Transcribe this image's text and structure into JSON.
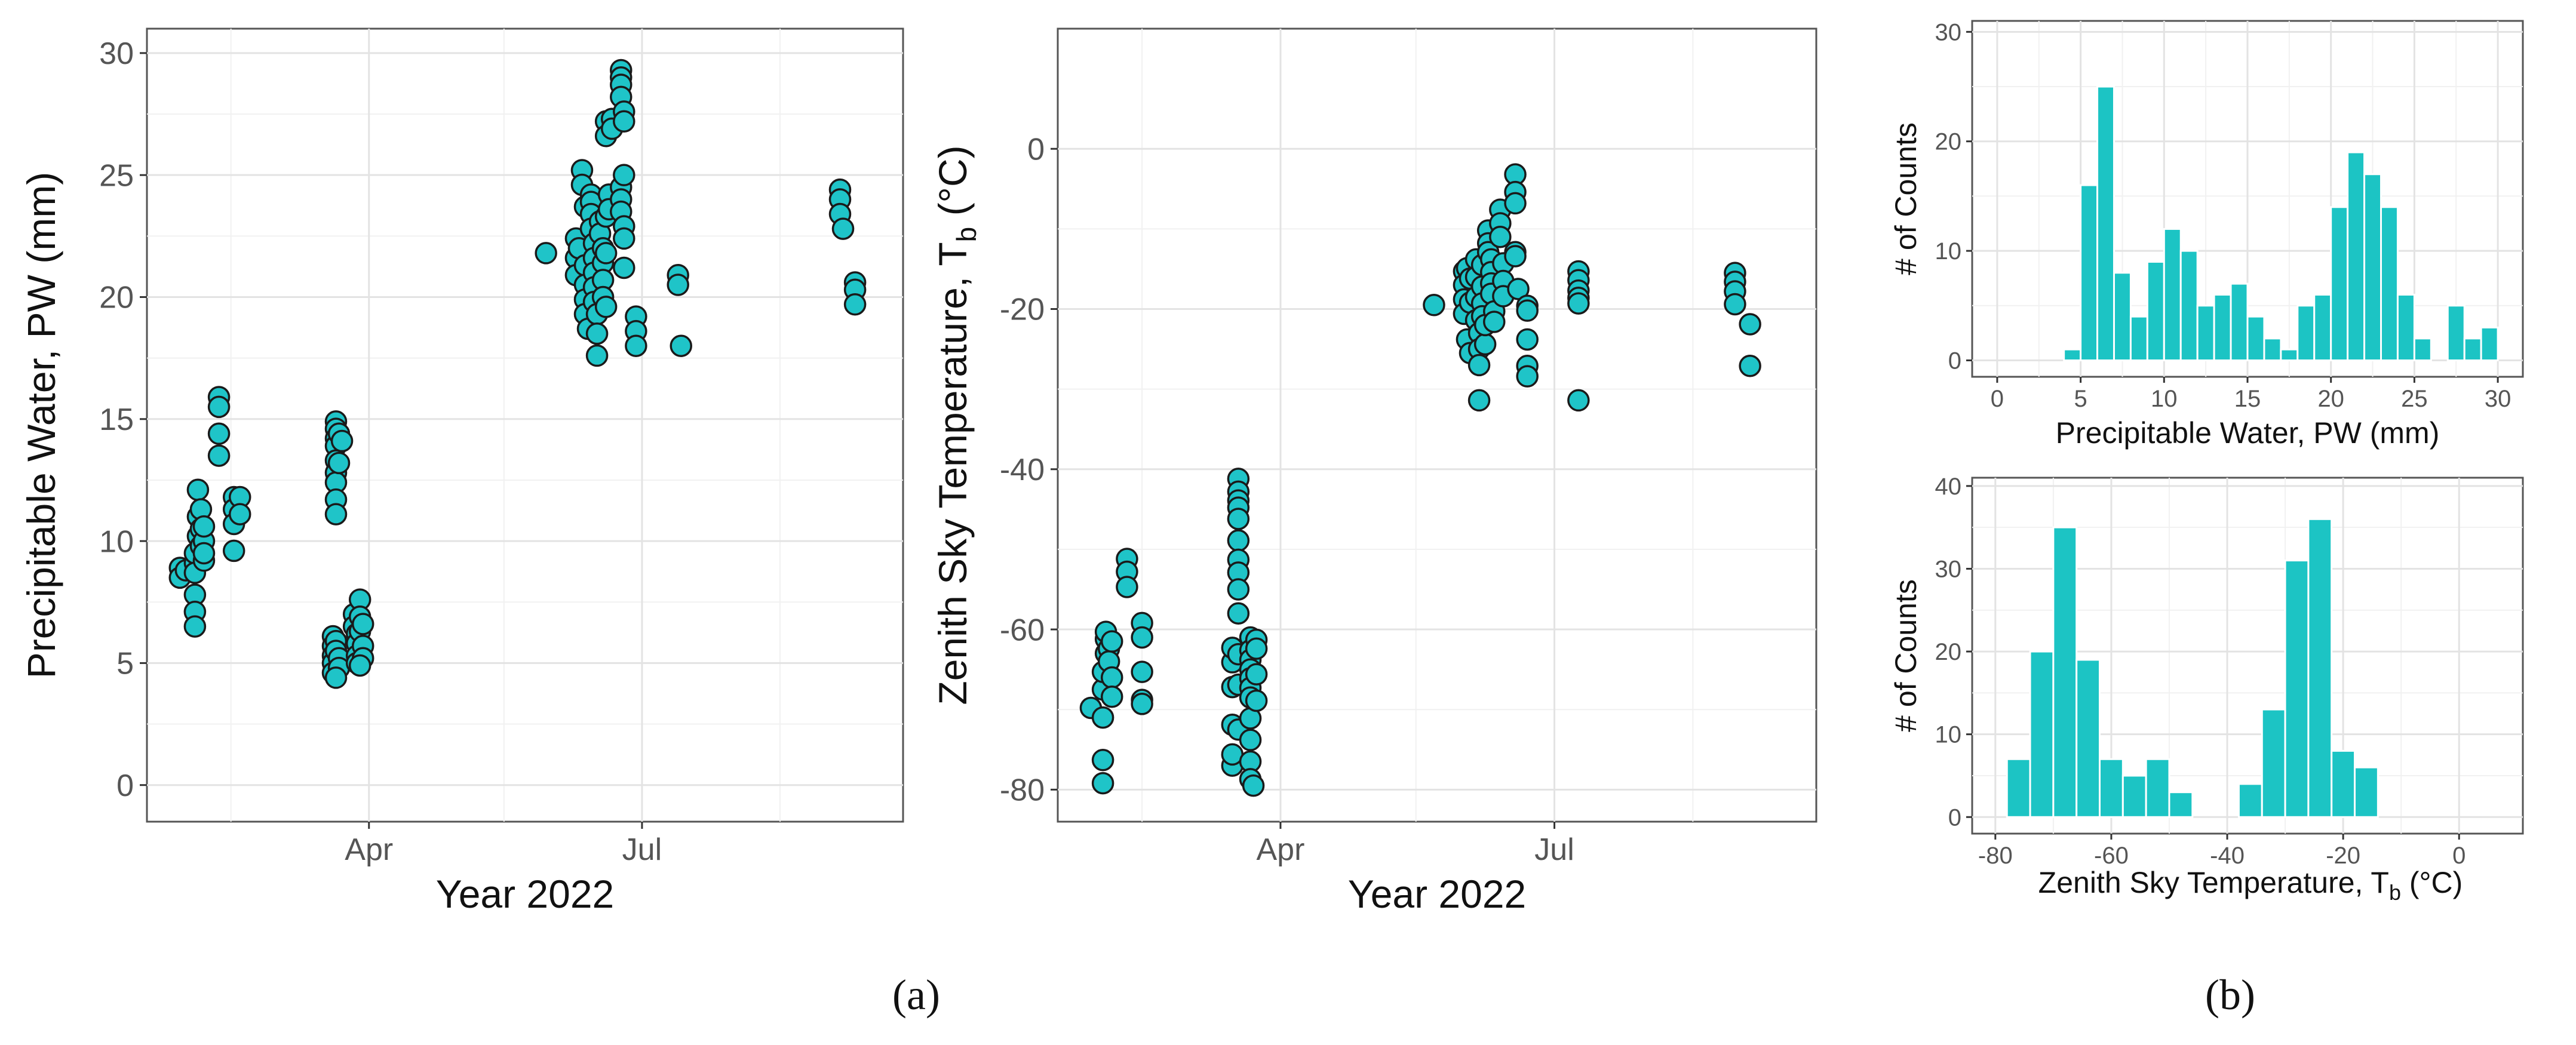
{
  "panel_labels": {
    "a": "(a)",
    "b": "(b)"
  },
  "chart_data": [
    {
      "id": "pw_ts",
      "type": "scatter",
      "title": "",
      "xlabel": "Year 2022",
      "ylabel": "Precipitable Water, PW  (mm)",
      "ylim": [
        -1.5,
        31
      ],
      "xlim_days": [
        17,
        269
      ],
      "xticks": [
        {
          "day": 91,
          "label": "Apr"
        },
        {
          "day": 182,
          "label": "Jul"
        }
      ],
      "yticks": [
        0,
        5,
        10,
        15,
        20,
        25,
        30
      ],
      "points": [
        [
          28,
          8.9
        ],
        [
          28,
          8.5
        ],
        [
          30,
          8.8
        ],
        [
          33,
          9.1
        ],
        [
          33,
          9.5
        ],
        [
          33,
          8.7
        ],
        [
          33,
          7.8
        ],
        [
          33,
          7.1
        ],
        [
          33,
          6.5
        ],
        [
          34,
          10.2
        ],
        [
          34,
          11.0
        ],
        [
          34,
          12.1
        ],
        [
          35,
          9.8
        ],
        [
          35,
          10.5
        ],
        [
          35,
          11.3
        ],
        [
          36,
          9.2
        ],
        [
          36,
          10.0
        ],
        [
          36,
          10.6
        ],
        [
          36,
          9.5
        ],
        [
          41,
          15.9
        ],
        [
          41,
          15.5
        ],
        [
          41,
          14.4
        ],
        [
          41,
          13.5
        ],
        [
          46,
          11.8
        ],
        [
          46,
          11.3
        ],
        [
          46,
          10.7
        ],
        [
          46,
          9.6
        ],
        [
          48,
          11.8
        ],
        [
          48,
          11.1
        ],
        [
          80,
          14.9
        ],
        [
          80,
          14.6
        ],
        [
          80,
          14.2
        ],
        [
          80,
          13.9
        ],
        [
          80,
          13.3
        ],
        [
          80,
          12.8
        ],
        [
          80,
          12.4
        ],
        [
          80,
          11.7
        ],
        [
          80,
          11.1
        ],
        [
          81,
          14.4
        ],
        [
          81,
          13.2
        ],
        [
          82,
          14.1
        ],
        [
          79,
          6.1
        ],
        [
          79,
          5.7
        ],
        [
          79,
          5.3
        ],
        [
          79,
          5.0
        ],
        [
          79,
          4.6
        ],
        [
          80,
          5.9
        ],
        [
          80,
          5.5
        ],
        [
          81,
          5.2
        ],
        [
          81,
          4.8
        ],
        [
          80,
          4.4
        ],
        [
          86,
          7.0
        ],
        [
          86,
          6.5
        ],
        [
          87,
          6.2
        ],
        [
          87,
          5.8
        ],
        [
          87,
          5.3
        ],
        [
          87,
          5.0
        ],
        [
          88,
          7.6
        ],
        [
          88,
          6.9
        ],
        [
          88,
          6.3
        ],
        [
          89,
          5.7
        ],
        [
          89,
          5.2
        ],
        [
          89,
          6.6
        ],
        [
          88,
          4.9
        ],
        [
          150,
          21.8
        ],
        [
          160,
          22.4
        ],
        [
          160,
          21.6
        ],
        [
          160,
          20.9
        ],
        [
          161,
          22.0
        ],
        [
          162,
          25.2
        ],
        [
          162,
          24.6
        ],
        [
          163,
          23.7
        ],
        [
          163,
          21.3
        ],
        [
          163,
          20.5
        ],
        [
          163,
          19.9
        ],
        [
          163,
          19.3
        ],
        [
          164,
          18.7
        ],
        [
          165,
          24.2
        ],
        [
          165,
          23.9
        ],
        [
          165,
          23.4
        ],
        [
          165,
          22.8
        ],
        [
          166,
          22.2
        ],
        [
          166,
          21.6
        ],
        [
          166,
          21.0
        ],
        [
          166,
          20.4
        ],
        [
          166,
          19.8
        ],
        [
          167,
          19.3
        ],
        [
          167,
          18.5
        ],
        [
          167,
          17.6
        ],
        [
          168,
          23.1
        ],
        [
          168,
          22.6
        ],
        [
          169,
          22.0
        ],
        [
          169,
          21.4
        ],
        [
          169,
          20.7
        ],
        [
          169,
          20.0
        ],
        [
          170,
          19.6
        ],
        [
          170,
          21.8
        ],
        [
          170,
          23.3
        ],
        [
          170,
          27.2
        ],
        [
          170,
          26.6
        ],
        [
          171,
          24.2
        ],
        [
          171,
          23.6
        ],
        [
          172,
          27.3
        ],
        [
          172,
          26.9
        ],
        [
          175,
          29.3
        ],
        [
          175,
          29.0
        ],
        [
          175,
          28.7
        ],
        [
          175,
          28.2
        ],
        [
          176,
          27.6
        ],
        [
          176,
          27.2
        ],
        [
          175,
          24.5
        ],
        [
          175,
          24.0
        ],
        [
          175,
          23.5
        ],
        [
          176,
          22.9
        ],
        [
          176,
          22.4
        ],
        [
          176,
          21.2
        ],
        [
          176,
          25.0
        ],
        [
          180,
          19.2
        ],
        [
          180,
          18.6
        ],
        [
          180,
          18.0
        ],
        [
          194,
          20.9
        ],
        [
          194,
          20.5
        ],
        [
          195,
          18.0
        ],
        [
          248,
          24.4
        ],
        [
          248,
          24.0
        ],
        [
          248,
          23.4
        ],
        [
          249,
          22.8
        ],
        [
          253,
          20.6
        ],
        [
          253,
          20.3
        ],
        [
          253,
          19.7
        ]
      ]
    },
    {
      "id": "tb_ts",
      "type": "scatter",
      "title": "",
      "xlabel": "Year 2022",
      "ylabel_main": "Zenith Sky Temperature, T",
      "ylabel_sub": "b",
      "ylabel_unit": "  (°C)",
      "ylim": [
        -84,
        15
      ],
      "xlim_days": [
        17,
        269
      ],
      "xticks": [
        {
          "day": 91,
          "label": "Apr"
        },
        {
          "day": 182,
          "label": "Jul"
        }
      ],
      "yticks": [
        -80,
        -60,
        -40,
        -20,
        0
      ],
      "points": [
        [
          28,
          -69.8
        ],
        [
          32,
          -79.2
        ],
        [
          32,
          -76.3
        ],
        [
          32,
          -71.0
        ],
        [
          32,
          -67.5
        ],
        [
          32,
          -65.3
        ],
        [
          33,
          -63.0
        ],
        [
          33,
          -61.2
        ],
        [
          33,
          -60.3
        ],
        [
          34,
          -62.4
        ],
        [
          34,
          -64.0
        ],
        [
          35,
          -66.0
        ],
        [
          35,
          -68.4
        ],
        [
          35,
          -61.5
        ],
        [
          40,
          -51.2
        ],
        [
          40,
          -52.8
        ],
        [
          40,
          -54.7
        ],
        [
          45,
          -59.2
        ],
        [
          45,
          -61.0
        ],
        [
          45,
          -65.3
        ],
        [
          45,
          -68.8
        ],
        [
          45,
          -69.3
        ],
        [
          75,
          -77.0
        ],
        [
          75,
          -75.6
        ],
        [
          75,
          -71.9
        ],
        [
          75,
          -67.2
        ],
        [
          75,
          -64.1
        ],
        [
          75,
          -62.3
        ],
        [
          77,
          -41.2
        ],
        [
          77,
          -42.8
        ],
        [
          77,
          -43.9
        ],
        [
          77,
          -44.8
        ],
        [
          77,
          -46.2
        ],
        [
          77,
          -48.9
        ],
        [
          77,
          -51.3
        ],
        [
          77,
          -52.9
        ],
        [
          77,
          -55.0
        ],
        [
          77,
          -58.0
        ],
        [
          77,
          -63.1
        ],
        [
          77,
          -66.9
        ],
        [
          77,
          -72.5
        ],
        [
          81,
          -61.0
        ],
        [
          81,
          -62.6
        ],
        [
          81,
          -63.8
        ],
        [
          81,
          -65.0
        ],
        [
          81,
          -66.1
        ],
        [
          81,
          -67.3
        ],
        [
          81,
          -68.5
        ],
        [
          81,
          -71.1
        ],
        [
          81,
          -73.8
        ],
        [
          81,
          -76.5
        ],
        [
          81,
          -78.7
        ],
        [
          82,
          -79.5
        ],
        [
          83,
          -61.3
        ],
        [
          83,
          -62.4
        ],
        [
          83,
          -65.6
        ],
        [
          83,
          -68.9
        ],
        [
          142,
          -19.5
        ],
        [
          152,
          -15.3
        ],
        [
          152,
          -17.0
        ],
        [
          152,
          -18.8
        ],
        [
          152,
          -20.6
        ],
        [
          153,
          -23.8
        ],
        [
          153,
          -14.9
        ],
        [
          154,
          -16.2
        ],
        [
          154,
          -19.2
        ],
        [
          154,
          -25.5
        ],
        [
          156,
          -13.8
        ],
        [
          156,
          -16.0
        ],
        [
          156,
          -18.5
        ],
        [
          156,
          -21.4
        ],
        [
          157,
          -23.0
        ],
        [
          157,
          -25.0
        ],
        [
          157,
          -27.0
        ],
        [
          157,
          -31.4
        ],
        [
          158,
          -14.5
        ],
        [
          158,
          -17.2
        ],
        [
          158,
          -19.3
        ],
        [
          158,
          -20.9
        ],
        [
          159,
          -24.4
        ],
        [
          159,
          -22.0
        ],
        [
          160,
          -10.2
        ],
        [
          160,
          -11.8
        ],
        [
          160,
          -12.9
        ],
        [
          161,
          -13.8
        ],
        [
          161,
          -15.4
        ],
        [
          161,
          -16.8
        ],
        [
          161,
          -18.1
        ],
        [
          162,
          -20.3
        ],
        [
          162,
          -21.6
        ],
        [
          164,
          -7.6
        ],
        [
          164,
          -9.3
        ],
        [
          164,
          -11.0
        ],
        [
          165,
          -14.3
        ],
        [
          165,
          -16.5
        ],
        [
          165,
          -18.4
        ],
        [
          169,
          -3.2
        ],
        [
          169,
          -5.4
        ],
        [
          169,
          -6.8
        ],
        [
          169,
          -12.9
        ],
        [
          169,
          -13.4
        ],
        [
          170,
          -17.5
        ],
        [
          173,
          -19.6
        ],
        [
          173,
          -20.2
        ],
        [
          173,
          -23.8
        ],
        [
          173,
          -27.1
        ],
        [
          173,
          -28.4
        ],
        [
          190,
          -15.3
        ],
        [
          190,
          -16.4
        ],
        [
          190,
          -17.7
        ],
        [
          190,
          -18.6
        ],
        [
          190,
          -19.3
        ],
        [
          190,
          -31.4
        ],
        [
          242,
          -15.5
        ],
        [
          242,
          -16.6
        ],
        [
          242,
          -17.8
        ],
        [
          242,
          -19.4
        ],
        [
          247,
          -21.9
        ],
        [
          247,
          -27.1
        ]
      ]
    },
    {
      "id": "pw_hist",
      "type": "bar",
      "title": "",
      "xlabel": "Precipitable Water, PW  (mm)",
      "ylabel": "# of Counts",
      "bin_width": 1,
      "bin_starts": [
        4,
        5,
        6,
        7,
        8,
        9,
        10,
        11,
        12,
        13,
        14,
        15,
        16,
        17,
        18,
        19,
        20,
        21,
        22,
        23,
        24,
        25,
        26,
        27,
        28,
        29
      ],
      "values": [
        1,
        16,
        25,
        8,
        4,
        9,
        12,
        10,
        5,
        6,
        7,
        4,
        2,
        1,
        5,
        6,
        14,
        19,
        17,
        14,
        6,
        2,
        0,
        5,
        2,
        3
      ],
      "xlim": [
        -1.5,
        31.5
      ],
      "ylim": [
        -1.5,
        31
      ],
      "xticks": [
        0,
        5,
        10,
        15,
        20,
        25,
        30
      ],
      "yticks": [
        0,
        10,
        20,
        30
      ]
    },
    {
      "id": "tb_hist",
      "type": "bar",
      "title": "",
      "xlabel_main": "Zenith Sky Temperature, T",
      "xlabel_sub": "b",
      "xlabel_unit": "  (°C)",
      "ylabel": "# of Counts",
      "bin_width": 4,
      "bin_starts": [
        -78,
        -74,
        -70,
        -66,
        -62,
        -58,
        -54,
        -50,
        -46,
        -42,
        -38,
        -34,
        -30,
        -26,
        -22,
        -18,
        -14,
        -10,
        -6
      ],
      "values": [
        7,
        20,
        35,
        19,
        7,
        5,
        7,
        3,
        0,
        0,
        4,
        13,
        31,
        36,
        8,
        6,
        0,
        0,
        0
      ],
      "xlim": [
        -84,
        11
      ],
      "ylim": [
        -2,
        41
      ],
      "xticks": [
        -80,
        -60,
        -40,
        -20,
        0
      ],
      "yticks": [
        0,
        10,
        20,
        30,
        40
      ]
    }
  ]
}
